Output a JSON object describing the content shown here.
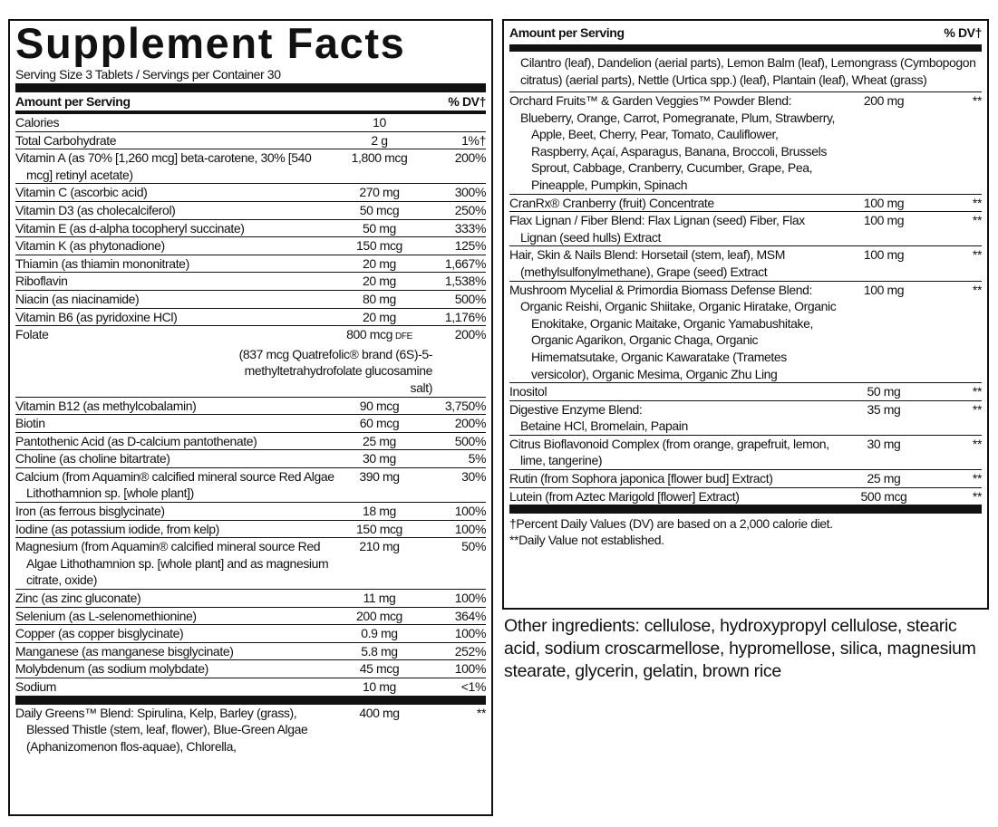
{
  "left": {
    "title": "Supplement Facts",
    "serving": "Serving Size 3 Tablets / Servings per Container 30",
    "header": {
      "label": "Amount per Serving",
      "dv": "% DV†"
    },
    "rows": [
      {
        "name": "Calories",
        "amount": "10"
      },
      {
        "name": "Total Carbohydrate",
        "amount": "2 g",
        "dv": "1%†"
      },
      {
        "name": "Vitamin A (as 70% [1,260 mcg] beta-carotene, 30% [540 mcg] retinyl acetate)",
        "amount": "1,800 mcg",
        "dv": "200%"
      },
      {
        "name": "Vitamin C (ascorbic acid)",
        "amount": "270 mg",
        "dv": "300%"
      },
      {
        "name": "Vitamin D3 (as cholecalciferol)",
        "amount": "50 mcg",
        "dv": "250%"
      },
      {
        "name": "Vitamin E (as d-alpha tocopheryl succinate)",
        "amount": "50 mg",
        "dv": "333%"
      },
      {
        "name": "Vitamin K (as phytonadione)",
        "amount": "150 mcg",
        "dv": "125%"
      },
      {
        "name": "Thiamin (as thiamin mononitrate)",
        "amount": "20 mg",
        "dv": "1,667%"
      },
      {
        "name": "Riboflavin",
        "amount": "20 mg",
        "dv": "1,538%"
      },
      {
        "name": "Niacin (as niacinamide)",
        "amount": "80 mg",
        "dv": "500%"
      },
      {
        "name": "Vitamin B6 (as pyridoxine HCl)",
        "amount": "20 mg",
        "dv": "1,176%"
      },
      {
        "name": "Folate",
        "amount": "800 mcg",
        "unit": "DFE",
        "dv": "200%",
        "detail": "(837 mcg Quatrefolic® brand (6S)-5-methyltetrahydrofolate glucosamine salt)"
      },
      {
        "name": "Vitamin B12 (as methylcobalamin)",
        "amount": "90 mcg",
        "dv": "3,750%"
      },
      {
        "name": "Biotin",
        "amount": "60 mcg",
        "dv": "200%"
      },
      {
        "name": "Pantothenic Acid (as D-calcium pantothenate)",
        "amount": "25 mg",
        "dv": "500%"
      },
      {
        "name": "Choline (as choline bitartrate)",
        "amount": "30 mg",
        "dv": "5%"
      },
      {
        "name": "Calcium (from Aquamin® calcified mineral source Red Algae Lithothamnion sp. [whole plant])",
        "amount": "390 mg",
        "dv": "30%"
      },
      {
        "name": "Iron (as ferrous bisglycinate)",
        "amount": "18 mg",
        "dv": "100%"
      },
      {
        "name": "Iodine (as potassium iodide, from kelp)",
        "amount": "150 mcg",
        "dv": "100%"
      },
      {
        "name": "Magnesium (from Aquamin® calcified mineral source Red Algae Lithothamnion sp. [whole plant] and as magnesium citrate, oxide)",
        "amount": "210 mg",
        "dv": "50%"
      },
      {
        "name": "Zinc (as zinc gluconate)",
        "amount": "11 mg",
        "dv": "100%"
      },
      {
        "name": "Selenium (as L-selenomethionine)",
        "amount": "200 mcg",
        "dv": "364%"
      },
      {
        "name": "Copper (as copper bisglycinate)",
        "amount": "0.9 mg",
        "dv": "100%"
      },
      {
        "name": "Manganese (as manganese bisglycinate)",
        "amount": "5.8 mg",
        "dv": "252%"
      },
      {
        "name": "Molybdenum (as sodium molybdate)",
        "amount": "45 mcg",
        "dv": "100%"
      },
      {
        "name": "Sodium",
        "amount": "10 mg",
        "dv": "<1%"
      }
    ],
    "blend": {
      "name": "Daily Greens™ Blend: Spirulina, Kelp, Barley (grass), Blessed Thistle (stem, leaf, flower), Blue-Green Algae (Aphanizomenon flos-aquae), Chlorella,",
      "amount": "400 mg",
      "dv": "**"
    }
  },
  "right": {
    "header": {
      "label": "Amount per Serving",
      "dv": "% DV†"
    },
    "continued": "Cilantro (leaf), Dandelion (aerial parts), Lemon Balm (leaf), Lemongrass (Cymbopogon citratus) (aerial parts), Nettle (Urtica spp.) (leaf), Plantain (leaf), Wheat (grass)",
    "rows": [
      {
        "name": "Orchard Fruits™ & Garden Veggies™ Powder Blend:",
        "detail": "Blueberry, Orange, Carrot, Pomegranate, Plum, Strawberry, Apple, Beet, Cherry, Pear, Tomato, Cauliflower, Raspberry, Açaí, Asparagus, Banana, Broccoli, Brussels Sprout, Cabbage, Cranberry, Cucumber, Grape, Pea, Pineapple, Pumpkin, Spinach",
        "amount": "200 mg",
        "dv": "**"
      },
      {
        "name": "CranRx® Cranberry (fruit) Concentrate",
        "amount": "100 mg",
        "dv": "**"
      },
      {
        "name": "Flax Lignan / Fiber Blend: Flax Lignan (seed) Fiber, Flax Lignan (seed hulls) Extract",
        "amount": "100 mg",
        "dv": "**"
      },
      {
        "name": "Hair, Skin & Nails Blend: Horsetail (stem, leaf), MSM (methylsulfonylmethane), Grape (seed) Extract",
        "amount": "100 mg",
        "dv": "**"
      },
      {
        "name": "Mushroom Mycelial & Primordia Biomass Defense Blend:",
        "detail": "Organic Reishi, Organic Shiitake, Organic Hiratake, Organic Enokitake, Organic Maitake, Organic Yamabushitake, Organic Agarikon, Organic Chaga, Organic Himematsutake, Organic Kawaratake (Trametes versicolor), Organic Mesima, Organic Zhu Ling",
        "amount": "100 mg",
        "dv": "**"
      },
      {
        "name": "Inositol",
        "amount": "50 mg",
        "dv": "**"
      },
      {
        "name": "Digestive Enzyme Blend:",
        "detail": "Betaine HCl, Bromelain, Papain",
        "amount": "35 mg",
        "dv": "**"
      },
      {
        "name": "Citrus Bioflavonoid Complex (from orange, grapefruit, lemon, lime, tangerine)",
        "amount": "30 mg",
        "dv": "**"
      },
      {
        "name": "Rutin (from Sophora japonica [flower bud] Extract)",
        "amount": "25 mg",
        "dv": "**"
      },
      {
        "name": "Lutein (from Aztec Marigold [flower] Extract)",
        "amount": "500 mcg",
        "dv": "**"
      }
    ],
    "footnotes": [
      "†Percent Daily Values (DV) are based on a 2,000 calorie diet.",
      "**Daily Value not established."
    ]
  },
  "other_ingredients": "Other ingredients: cellulose, hydroxypropyl cellulose, stearic acid, sodium croscarmellose, hypromellose, silica, magnesium stearate, glycerin, gelatin, brown rice"
}
